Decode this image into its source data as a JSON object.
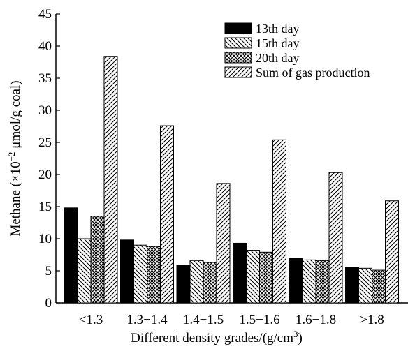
{
  "chart_data": {
    "type": "bar",
    "xlabel_main": "Different density grades/(g/cm",
    "xlabel_sup": "3",
    "xlabel_end": ")",
    "ylabel_main": "Methane (×10",
    "ylabel_sup": "−2",
    "ylabel_end": " μmol/g coal)",
    "ylim": [
      0,
      45
    ],
    "yticks": [
      0,
      5,
      10,
      15,
      20,
      25,
      30,
      35,
      40,
      45
    ],
    "categories": [
      "<1.3",
      "1.3−1.4",
      "1.4−1.5",
      "1.5−1.6",
      "1.6−1.8",
      ">1.8"
    ],
    "series": [
      {
        "name": "13th day",
        "pattern": "solid",
        "values": [
          14.8,
          9.8,
          5.9,
          9.3,
          7.0,
          5.5
        ]
      },
      {
        "name": "15th day",
        "pattern": "backslash",
        "values": [
          10.0,
          9.0,
          6.6,
          8.2,
          6.7,
          5.4
        ]
      },
      {
        "name": "20th day",
        "pattern": "crosshatch",
        "values": [
          13.5,
          8.8,
          6.3,
          7.9,
          6.6,
          5.1
        ]
      },
      {
        "name": "Sum of gas production",
        "pattern": "slash",
        "values": [
          38.4,
          27.6,
          18.6,
          25.4,
          20.3,
          15.9
        ]
      }
    ],
    "legend_position": "top-right",
    "grid": false
  }
}
